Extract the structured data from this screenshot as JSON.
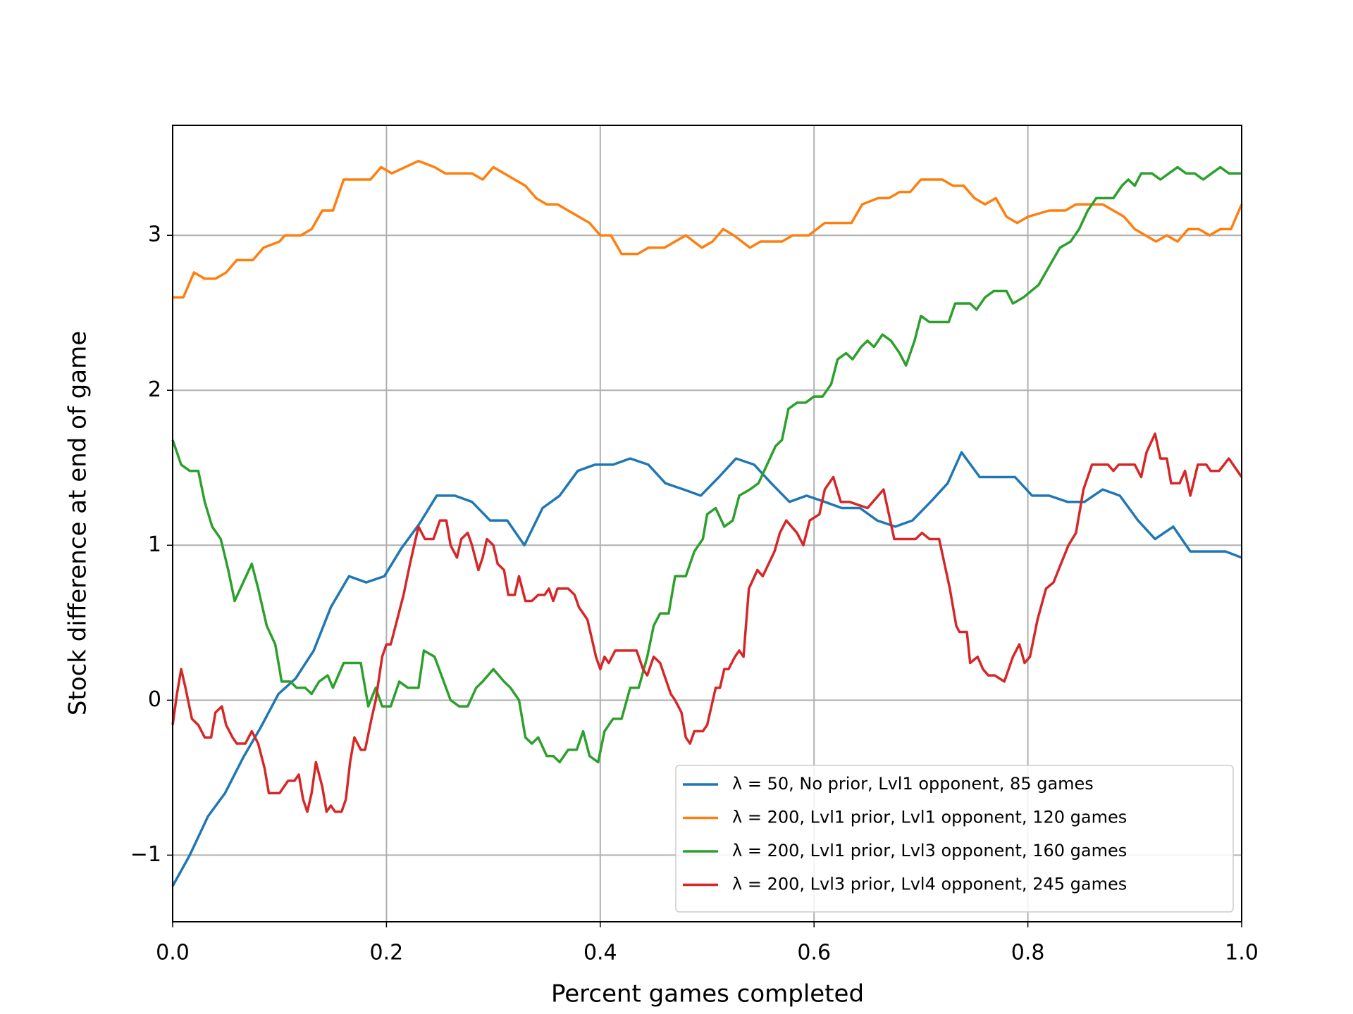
{
  "chart_data": {
    "type": "line",
    "xlabel": "Percent games completed",
    "ylabel": "Stock difference at end of game",
    "xlim": [
      0,
      1
    ],
    "ylim": [
      -1.43,
      3.71
    ],
    "xticks": [
      {
        "value": 0,
        "label": "0.0"
      },
      0.2,
      0.4,
      0.6,
      0.8,
      {
        "value": 1,
        "label": "1.0"
      }
    ],
    "yticks": [
      {
        "value": -1,
        "label": "−1"
      },
      0,
      1,
      2,
      3
    ],
    "grid": true,
    "legend": "lower right",
    "series": [
      {
        "name": "λ = 50, No prior, Lvl1 opponent, 85 games",
        "color": "#1f77b4",
        "x": [
          0,
          0.016,
          0.033,
          0.049,
          0.066,
          0.082,
          0.099,
          0.115,
          0.132,
          0.148,
          0.165,
          0.181,
          0.198,
          0.214,
          0.231,
          0.247,
          0.264,
          0.28,
          0.297,
          0.313,
          0.329,
          0.346,
          0.362,
          0.379,
          0.395,
          0.412,
          0.428,
          0.445,
          0.461,
          0.478,
          0.494,
          0.511,
          0.527,
          0.544,
          0.56,
          0.577,
          0.593,
          0.61,
          0.626,
          0.643,
          0.659,
          0.676,
          0.692,
          0.709,
          0.725,
          0.738,
          0.755,
          0.771,
          0.788,
          0.804,
          0.82,
          0.837,
          0.853,
          0.87,
          0.886,
          0.903,
          0.919,
          0.936,
          0.952,
          0.969,
          0.985,
          1
        ],
        "values": [
          -1.2,
          -1.0,
          -0.75,
          -0.6,
          -0.37,
          -0.18,
          0.04,
          0.14,
          0.32,
          0.6,
          0.8,
          0.76,
          0.8,
          0.98,
          1.14,
          1.32,
          1.32,
          1.28,
          1.16,
          1.16,
          1.0,
          1.24,
          1.32,
          1.48,
          1.52,
          1.52,
          1.56,
          1.52,
          1.4,
          1.36,
          1.32,
          1.44,
          1.56,
          1.52,
          1.4,
          1.28,
          1.32,
          1.28,
          1.24,
          1.24,
          1.16,
          1.12,
          1.16,
          1.28,
          1.4,
          1.6,
          1.44,
          1.44,
          1.44,
          1.32,
          1.32,
          1.28,
          1.28,
          1.36,
          1.32,
          1.16,
          1.04,
          1.12,
          0.96,
          0.96,
          0.96,
          0.92
        ]
      },
      {
        "name": "λ = 200, Lvl1 prior, Lvl1 opponent, 120 games",
        "color": "#ff7f0e",
        "x": [
          0,
          0.01,
          0.02,
          0.03,
          0.04,
          0.05,
          0.06,
          0.075,
          0.085,
          0.1,
          0.105,
          0.12,
          0.13,
          0.14,
          0.15,
          0.16,
          0.185,
          0.195,
          0.205,
          0.23,
          0.245,
          0.255,
          0.28,
          0.29,
          0.3,
          0.32,
          0.33,
          0.34,
          0.35,
          0.36,
          0.37,
          0.39,
          0.4,
          0.41,
          0.42,
          0.435,
          0.445,
          0.46,
          0.48,
          0.495,
          0.505,
          0.515,
          0.525,
          0.54,
          0.55,
          0.57,
          0.58,
          0.595,
          0.61,
          0.635,
          0.645,
          0.66,
          0.67,
          0.68,
          0.69,
          0.7,
          0.72,
          0.73,
          0.74,
          0.75,
          0.76,
          0.77,
          0.78,
          0.79,
          0.8,
          0.82,
          0.835,
          0.845,
          0.87,
          0.88,
          0.89,
          0.9,
          0.92,
          0.93,
          0.94,
          0.95,
          0.96,
          0.97,
          0.98,
          0.99,
          1
        ],
        "values": [
          2.6,
          2.6,
          2.76,
          2.72,
          2.72,
          2.76,
          2.84,
          2.84,
          2.92,
          2.96,
          3.0,
          3.0,
          3.04,
          3.16,
          3.16,
          3.36,
          3.36,
          3.44,
          3.4,
          3.48,
          3.44,
          3.4,
          3.4,
          3.36,
          3.44,
          3.36,
          3.32,
          3.24,
          3.2,
          3.2,
          3.16,
          3.08,
          3.0,
          3.0,
          2.88,
          2.88,
          2.92,
          2.92,
          3.0,
          2.92,
          2.96,
          3.04,
          3.0,
          2.92,
          2.96,
          2.96,
          3.0,
          3.0,
          3.08,
          3.08,
          3.2,
          3.24,
          3.24,
          3.28,
          3.28,
          3.36,
          3.36,
          3.32,
          3.32,
          3.24,
          3.2,
          3.24,
          3.12,
          3.08,
          3.12,
          3.16,
          3.16,
          3.2,
          3.2,
          3.16,
          3.12,
          3.04,
          2.96,
          3.0,
          2.96,
          3.04,
          3.04,
          3.0,
          3.04,
          3.04,
          3.2
        ]
      },
      {
        "name": "λ = 200, Lvl1 prior, Lvl3 opponent, 160 games",
        "color": "#2ca02c",
        "x": [
          0,
          0.008,
          0.016,
          0.024,
          0.03,
          0.037,
          0.045,
          0.052,
          0.058,
          0.066,
          0.074,
          0.08,
          0.088,
          0.096,
          0.102,
          0.11,
          0.116,
          0.124,
          0.13,
          0.137,
          0.145,
          0.15,
          0.16,
          0.176,
          0.183,
          0.19,
          0.196,
          0.204,
          0.212,
          0.22,
          0.23,
          0.235,
          0.245,
          0.26,
          0.268,
          0.276,
          0.284,
          0.29,
          0.3,
          0.31,
          0.316,
          0.324,
          0.33,
          0.336,
          0.342,
          0.35,
          0.356,
          0.362,
          0.37,
          0.378,
          0.384,
          0.39,
          0.398,
          0.404,
          0.412,
          0.42,
          0.428,
          0.436,
          0.444,
          0.45,
          0.456,
          0.464,
          0.47,
          0.48,
          0.488,
          0.496,
          0.5,
          0.508,
          0.516,
          0.524,
          0.53,
          0.54,
          0.548,
          0.556,
          0.564,
          0.57,
          0.576,
          0.584,
          0.592,
          0.6,
          0.608,
          0.616,
          0.622,
          0.63,
          0.636,
          0.644,
          0.65,
          0.656,
          0.664,
          0.672,
          0.68,
          0.686,
          0.694,
          0.7,
          0.708,
          0.72,
          0.726,
          0.732,
          0.746,
          0.752,
          0.76,
          0.768,
          0.78,
          0.786,
          0.796,
          0.81,
          0.82,
          0.83,
          0.84,
          0.848,
          0.856,
          0.864,
          0.88,
          0.888,
          0.894,
          0.9,
          0.906,
          0.916,
          0.924,
          0.932,
          0.94,
          0.948,
          0.956,
          0.964,
          0.972,
          0.98,
          0.988,
          1
        ],
        "values": [
          1.68,
          1.52,
          1.48,
          1.48,
          1.28,
          1.12,
          1.04,
          0.84,
          0.64,
          0.76,
          0.88,
          0.72,
          0.48,
          0.36,
          0.12,
          0.12,
          0.08,
          0.08,
          0.04,
          0.12,
          0.16,
          0.08,
          0.24,
          0.24,
          -0.04,
          0.08,
          -0.04,
          -0.04,
          0.12,
          0.08,
          0.08,
          0.32,
          0.28,
          0.0,
          -0.04,
          -0.04,
          0.08,
          0.12,
          0.2,
          0.12,
          0.08,
          0.0,
          -0.24,
          -0.28,
          -0.24,
          -0.36,
          -0.36,
          -0.4,
          -0.32,
          -0.32,
          -0.2,
          -0.36,
          -0.4,
          -0.2,
          -0.12,
          -0.12,
          0.08,
          0.08,
          0.28,
          0.48,
          0.56,
          0.56,
          0.8,
          0.8,
          0.96,
          1.04,
          1.2,
          1.24,
          1.12,
          1.16,
          1.32,
          1.36,
          1.4,
          1.52,
          1.64,
          1.68,
          1.88,
          1.92,
          1.92,
          1.96,
          1.96,
          2.04,
          2.2,
          2.24,
          2.2,
          2.28,
          2.32,
          2.28,
          2.36,
          2.32,
          2.24,
          2.16,
          2.32,
          2.48,
          2.44,
          2.44,
          2.44,
          2.56,
          2.56,
          2.52,
          2.6,
          2.64,
          2.64,
          2.56,
          2.6,
          2.68,
          2.8,
          2.92,
          2.96,
          3.04,
          3.16,
          3.24,
          3.24,
          3.32,
          3.36,
          3.32,
          3.4,
          3.4,
          3.36,
          3.4,
          3.44,
          3.4,
          3.4,
          3.36,
          3.4,
          3.44,
          3.4,
          3.4
        ]
      },
      {
        "name": "λ = 200, Lvl3 prior, Lvl4 opponent, 245 games",
        "color": "#d62728",
        "x": [
          0,
          0.004,
          0.008,
          0.012,
          0.018,
          0.024,
          0.03,
          0.036,
          0.04,
          0.046,
          0.05,
          0.056,
          0.06,
          0.068,
          0.074,
          0.08,
          0.086,
          0.09,
          0.1,
          0.108,
          0.114,
          0.118,
          0.122,
          0.126,
          0.13,
          0.134,
          0.14,
          0.144,
          0.148,
          0.152,
          0.158,
          0.162,
          0.166,
          0.17,
          0.176,
          0.18,
          0.186,
          0.19,
          0.196,
          0.2,
          0.204,
          0.21,
          0.216,
          0.222,
          0.226,
          0.23,
          0.236,
          0.244,
          0.25,
          0.256,
          0.26,
          0.266,
          0.27,
          0.276,
          0.28,
          0.286,
          0.29,
          0.294,
          0.3,
          0.304,
          0.31,
          0.314,
          0.32,
          0.324,
          0.33,
          0.336,
          0.342,
          0.348,
          0.352,
          0.356,
          0.36,
          0.37,
          0.376,
          0.38,
          0.388,
          0.392,
          0.396,
          0.4,
          0.404,
          0.408,
          0.414,
          0.43,
          0.434,
          0.44,
          0.444,
          0.45,
          0.456,
          0.46,
          0.466,
          0.47,
          0.476,
          0.48,
          0.484,
          0.488,
          0.496,
          0.5,
          0.504,
          0.508,
          0.512,
          0.516,
          0.52,
          0.526,
          0.53,
          0.534,
          0.539,
          0.547,
          0.552,
          0.563,
          0.568,
          0.574,
          0.584,
          0.59,
          0.596,
          0.605,
          0.61,
          0.618,
          0.625,
          0.633,
          0.65,
          0.665,
          0.675,
          0.695,
          0.701,
          0.708,
          0.717,
          0.727,
          0.733,
          0.736,
          0.743,
          0.746,
          0.753,
          0.758,
          0.763,
          0.769,
          0.778,
          0.786,
          0.792,
          0.797,
          0.802,
          0.809,
          0.817,
          0.824,
          0.831,
          0.838,
          0.845,
          0.852,
          0.86,
          0.875,
          0.88,
          0.885,
          0.9,
          0.906,
          0.911,
          0.919,
          0.924,
          0.93,
          0.934,
          0.942,
          0.947,
          0.952,
          0.959,
          0.967,
          0.971,
          0.979,
          0.988,
          1
        ],
        "values": [
          -0.16,
          0.04,
          0.2,
          0.08,
          -0.12,
          -0.16,
          -0.24,
          -0.24,
          -0.08,
          -0.04,
          -0.16,
          -0.24,
          -0.28,
          -0.28,
          -0.2,
          -0.28,
          -0.44,
          -0.6,
          -0.6,
          -0.52,
          -0.52,
          -0.48,
          -0.64,
          -0.72,
          -0.6,
          -0.4,
          -0.56,
          -0.72,
          -0.68,
          -0.72,
          -0.72,
          -0.64,
          -0.4,
          -0.24,
          -0.32,
          -0.32,
          -0.12,
          0.0,
          0.28,
          0.36,
          0.36,
          0.52,
          0.68,
          0.88,
          1.0,
          1.12,
          1.04,
          1.04,
          1.16,
          1.16,
          1.0,
          0.92,
          1.04,
          1.08,
          1.0,
          0.84,
          0.92,
          1.04,
          1.0,
          0.88,
          0.84,
          0.68,
          0.68,
          0.8,
          0.64,
          0.64,
          0.68,
          0.68,
          0.72,
          0.64,
          0.72,
          0.72,
          0.68,
          0.6,
          0.52,
          0.4,
          0.28,
          0.2,
          0.28,
          0.24,
          0.32,
          0.32,
          0.32,
          0.2,
          0.16,
          0.28,
          0.24,
          0.16,
          0.04,
          0.0,
          -0.08,
          -0.24,
          -0.28,
          -0.2,
          -0.2,
          -0.16,
          -0.04,
          0.08,
          0.08,
          0.2,
          0.2,
          0.28,
          0.32,
          0.28,
          0.72,
          0.84,
          0.8,
          0.96,
          1.08,
          1.16,
          1.08,
          1.0,
          1.16,
          1.2,
          1.36,
          1.44,
          1.28,
          1.28,
          1.24,
          1.36,
          1.04,
          1.04,
          1.08,
          1.04,
          1.04,
          0.72,
          0.48,
          0.44,
          0.44,
          0.24,
          0.28,
          0.2,
          0.16,
          0.16,
          0.12,
          0.28,
          0.36,
          0.24,
          0.28,
          0.52,
          0.72,
          0.76,
          0.88,
          1.0,
          1.08,
          1.36,
          1.52,
          1.52,
          1.48,
          1.52,
          1.52,
          1.44,
          1.6,
          1.72,
          1.56,
          1.56,
          1.4,
          1.4,
          1.48,
          1.32,
          1.52,
          1.52,
          1.48,
          1.48,
          1.56,
          1.44
        ]
      }
    ]
  }
}
